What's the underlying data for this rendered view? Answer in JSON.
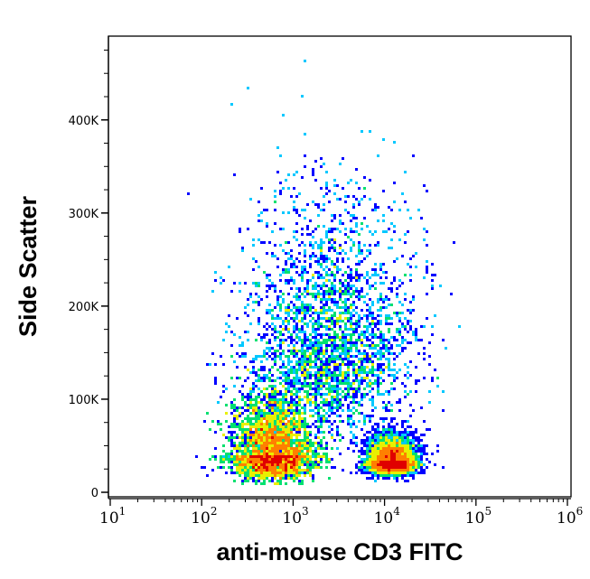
{
  "chart_data": {
    "type": "scatter",
    "subtype": "flow-cytometry pseudocolor density plot",
    "xlabel": "anti-mouse CD3 FITC",
    "ylabel": "Side Scatter",
    "x_scale": "log",
    "xlim": [
      10,
      1000000
    ],
    "ylim": [
      0,
      490000
    ],
    "x_ticks": [
      {
        "base": "10",
        "exp": "1"
      },
      {
        "base": "10",
        "exp": "2"
      },
      {
        "base": "10",
        "exp": "3"
      },
      {
        "base": "10",
        "exp": "4"
      },
      {
        "base": "10",
        "exp": "5"
      },
      {
        "base": "10",
        "exp": "6"
      }
    ],
    "y_ticks": [
      "0",
      "100K",
      "200K",
      "300K",
      "400K"
    ],
    "y_tick_values": [
      0,
      100000,
      200000,
      300000,
      400000
    ],
    "grid": false,
    "color_scale": [
      "#0000ff",
      "#00c8ff",
      "#00e070",
      "#e8f000",
      "#ff8000",
      "#e00000"
    ],
    "populations": [
      {
        "x_center": 600,
        "x_log_sd": 0.22,
        "y_center": 40000,
        "y_sd": 30000,
        "weight": 0.5
      },
      {
        "x_center": 12000,
        "x_log_sd": 0.13,
        "y_center": 32000,
        "y_sd": 14000,
        "weight": 0.22
      },
      {
        "x_center": 2500,
        "x_log_sd": 0.45,
        "y_center": 150000,
        "y_sd": 80000,
        "weight": 0.28
      }
    ]
  }
}
